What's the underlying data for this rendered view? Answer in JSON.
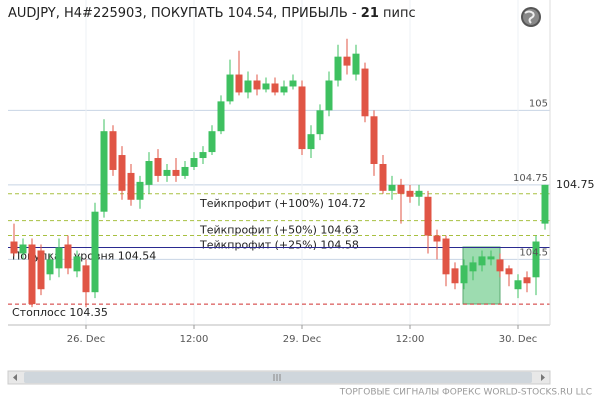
{
  "chart_data": {
    "type": "candlestick",
    "title_parts": [
      "AUDJPY, H4#225903, ПОКУПАТЬ 104.54, ПРИБЫЛЬ - ",
      "21",
      " пипс"
    ],
    "categories": [
      null,
      null,
      null,
      null,
      null,
      null,
      null,
      null,
      "26. Dec",
      null,
      null,
      null,
      null,
      null,
      null,
      null,
      null,
      null,
      null,
      null,
      "12:00",
      null,
      null,
      null,
      null,
      null,
      null,
      null,
      null,
      null,
      null,
      null,
      "29. Dec",
      null,
      null,
      null,
      null,
      null,
      null,
      null,
      null,
      null,
      null,
      null,
      "12:00",
      null,
      null,
      null,
      null,
      null,
      null,
      null,
      null,
      null,
      null,
      null,
      "30. Dec",
      null,
      null,
      null
    ],
    "open": [
      104.56,
      104.52,
      104.55,
      104.53,
      104.45,
      104.47,
      104.55,
      104.46,
      104.48,
      104.39,
      104.66,
      104.93,
      104.85,
      104.79,
      104.7,
      104.75,
      104.84,
      104.78,
      104.8,
      104.78,
      104.81,
      104.84,
      104.86,
      104.93,
      105.03,
      105.12,
      105.06,
      105.1,
      105.07,
      105.09,
      105.06,
      105.08,
      105.08,
      104.87,
      104.92,
      105.0,
      105.1,
      105.18,
      105.12,
      105.14,
      104.98,
      104.82,
      104.73,
      104.75,
      104.73,
      104.71,
      104.71,
      104.58,
      104.57,
      104.47,
      104.42,
      104.46,
      104.48,
      104.5,
      104.5,
      104.47,
      104.4,
      104.44,
      104.44,
      104.62
    ],
    "high": [
      104.62,
      104.57,
      104.57,
      104.55,
      104.52,
      104.57,
      104.58,
      104.53,
      104.5,
      104.69,
      104.97,
      104.95,
      104.88,
      104.82,
      104.78,
      104.86,
      104.87,
      104.82,
      104.84,
      104.83,
      104.86,
      104.88,
      104.95,
      105.05,
      105.17,
      105.2,
      105.13,
      105.12,
      105.11,
      105.11,
      105.1,
      105.12,
      105.1,
      104.95,
      105.02,
      105.13,
      105.22,
      105.24,
      105.22,
      105.16,
      105.0,
      104.85,
      104.78,
      104.77,
      104.75,
      104.75,
      104.73,
      104.6,
      104.58,
      104.49,
      104.5,
      104.51,
      104.53,
      104.53,
      104.52,
      104.48,
      104.45,
      104.46,
      104.58,
      104.75
    ],
    "low": [
      104.51,
      104.5,
      104.34,
      104.38,
      104.43,
      104.44,
      104.45,
      104.44,
      104.34,
      104.37,
      104.64,
      104.78,
      104.7,
      104.68,
      104.67,
      104.72,
      104.76,
      104.76,
      104.76,
      104.77,
      104.8,
      104.82,
      104.85,
      104.92,
      105.02,
      105.05,
      105.04,
      105.05,
      105.06,
      105.05,
      105.05,
      105.07,
      104.85,
      104.84,
      104.9,
      104.98,
      105.08,
      105.12,
      105.1,
      104.96,
      104.78,
      104.72,
      104.7,
      104.62,
      104.69,
      104.68,
      104.52,
      104.5,
      104.41,
      104.4,
      104.4,
      104.43,
      104.46,
      104.48,
      104.44,
      104.41,
      104.37,
      104.39,
      104.38,
      104.6
    ],
    "close": [
      104.52,
      104.55,
      104.35,
      104.4,
      104.5,
      104.54,
      104.47,
      104.51,
      104.39,
      104.66,
      104.93,
      104.8,
      104.73,
      104.7,
      104.76,
      104.83,
      104.78,
      104.8,
      104.78,
      104.81,
      104.84,
      104.86,
      104.93,
      105.03,
      105.12,
      105.06,
      105.1,
      105.07,
      105.09,
      105.06,
      105.08,
      105.1,
      104.87,
      104.92,
      105.0,
      105.1,
      105.18,
      105.15,
      105.19,
      104.98,
      104.82,
      104.73,
      104.75,
      104.72,
      104.71,
      104.73,
      104.58,
      104.56,
      104.45,
      104.42,
      104.48,
      104.49,
      104.51,
      104.51,
      104.46,
      104.45,
      104.43,
      104.42,
      104.56,
      104.75
    ],
    "up_color": "#3ec060",
    "down_color": "#e05545",
    "ylim": [
      104.28,
      105.37
    ],
    "yticks": [
      104.5,
      104.75,
      105.0
    ],
    "grid": true,
    "current_price": 104.75,
    "levels": [
      {
        "label": "Тейкпрофит (+100%) 104.72",
        "value": 104.72,
        "color": "#a8c040",
        "dash": true
      },
      {
        "label": "Тейкпрофит (+50%) 104.63",
        "value": 104.63,
        "color": "#a8c040",
        "dash": true
      },
      {
        "label": "Тейкпрофит (+25%) 104.58",
        "value": 104.58,
        "color": "#a8c040",
        "dash": true
      },
      {
        "label": "Покупка с уровня 104.54",
        "value": 104.54,
        "color": "#2a2a90",
        "dash": false
      },
      {
        "label": "Стоплосс 104.35",
        "value": 104.35,
        "color": "#d03030",
        "dash": true
      }
    ],
    "footer": "ТОРГОВЫЕ СИГНАЛЫ ФОРЕКС WORLD-STOCKS.RU LLC"
  }
}
